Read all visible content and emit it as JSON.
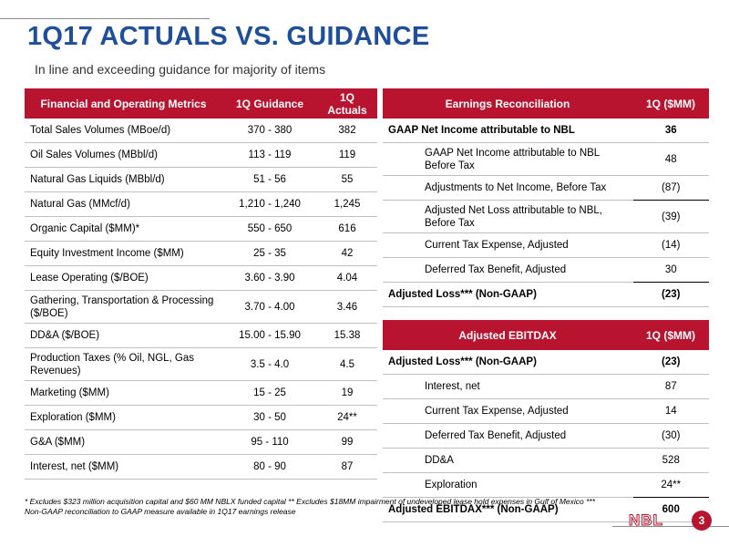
{
  "header": {
    "title": "1Q17 ACTUALS VS. GUIDANCE",
    "subtitle": "In line and exceeding guidance for majority of items"
  },
  "metrics": {
    "headers": [
      "Financial and Operating Metrics",
      "1Q Guidance",
      "1Q Actuals"
    ],
    "rows": [
      {
        "metric": "Total Sales Volumes (MBoe/d)",
        "guidance": "370 - 380",
        "actual": "382"
      },
      {
        "metric": "Oil Sales Volumes (MBbl/d)",
        "guidance": "113 - 119",
        "actual": "119"
      },
      {
        "metric": "Natural Gas Liquids (MBbl/d)",
        "guidance": "51 - 56",
        "actual": "55"
      },
      {
        "metric": "Natural Gas (MMcf/d)",
        "guidance": "1,210 - 1,240",
        "actual": "1,245"
      },
      {
        "metric": "Organic Capital ($MM)*",
        "guidance": "550 - 650",
        "actual": "616"
      },
      {
        "metric": "Equity Investment Income ($MM)",
        "guidance": "25 - 35",
        "actual": "42"
      },
      {
        "metric": "Lease Operating ($/BOE)",
        "guidance": "3.60 - 3.90",
        "actual": "4.04"
      },
      {
        "metric": "Gathering, Transportation & Processing ($/BOE)",
        "guidance": "3.70 - 4.00",
        "actual": "3.46"
      },
      {
        "metric": "DD&A ($/BOE)",
        "guidance": "15.00 - 15.90",
        "actual": "15.38"
      },
      {
        "metric": "Production Taxes (% Oil, NGL, Gas Revenues)",
        "guidance": "3.5 - 4.0",
        "actual": "4.5"
      },
      {
        "metric": "Marketing ($MM)",
        "guidance": "15 - 25",
        "actual": "19"
      },
      {
        "metric": "Exploration ($MM)",
        "guidance": "30 - 50",
        "actual": "24**"
      },
      {
        "metric": "G&A ($MM)",
        "guidance": "95 - 110",
        "actual": "99"
      },
      {
        "metric": "Interest, net ($MM)",
        "guidance": "80 - 90",
        "actual": "87"
      }
    ]
  },
  "earnings": {
    "headers": [
      "Earnings Reconciliation",
      "1Q ($MM)"
    ],
    "rows": [
      {
        "label": "GAAP Net Income attributable to NBL",
        "value": "36"
      },
      {
        "label": "GAAP Net Income attributable to NBL Before Tax",
        "value": "48"
      },
      {
        "label": "Adjustments to Net Income, Before Tax",
        "value": "(87)"
      },
      {
        "label": "Adjusted Net Loss attributable to NBL, Before Tax",
        "value": "(39)"
      },
      {
        "label": "Current Tax Expense, Adjusted",
        "value": "(14)"
      },
      {
        "label": "Deferred Tax Benefit, Adjusted",
        "value": "30"
      },
      {
        "label": "Adjusted Loss*** (Non-GAAP)",
        "value": "(23)"
      }
    ]
  },
  "ebitdax": {
    "headers": [
      "Adjusted EBITDAX",
      "1Q ($MM)"
    ],
    "rows": [
      {
        "label": "Adjusted Loss*** (Non-GAAP)",
        "value": "(23)"
      },
      {
        "label": "Interest, net",
        "value": "87"
      },
      {
        "label": "Current Tax Expense, Adjusted",
        "value": "14"
      },
      {
        "label": "Deferred Tax Benefit, Adjusted",
        "value": "(30)"
      },
      {
        "label": "DD&A",
        "value": "528"
      },
      {
        "label": "Exploration",
        "value": "24**"
      },
      {
        "label": "Adjusted EBITDAX*** (Non-GAAP)",
        "value": "600"
      }
    ]
  },
  "footnote": "* Excludes $323 million acquisition capital and $60 MM NBLX funded capital ** Excludes $18MM impairment of undeveloped lease hold expenses in Gulf of Mexico *** Non-GAAP reconciliation to GAAP measure available in 1Q17 earnings release",
  "footer": {
    "logo": "NBL",
    "page_number": "3",
    "brand_color": "#b8142f",
    "title_color": "#1f4e9a"
  }
}
